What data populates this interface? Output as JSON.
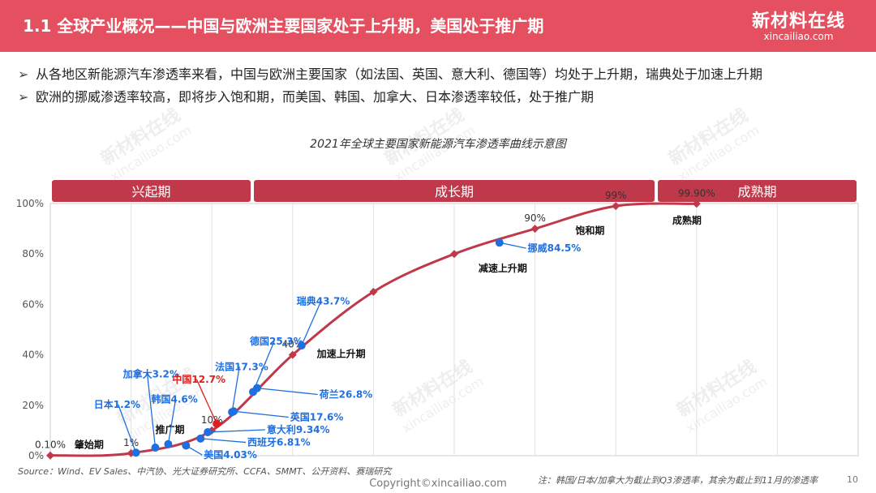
{
  "header": {
    "title": "1.1 全球产业概况——中国与欧洲主要国家处于上升期，美国处于推广期",
    "logo_cn": "新材料在线",
    "logo_en": "xincailiao.com"
  },
  "bullets": [
    {
      "mark": "➢",
      "text": "从各地区新能源汽车渗透率来看，中国与欧洲主要国家（如法国、英国、意大利、德国等）均处于上升期，瑞典处于加速上升期"
    },
    {
      "mark": "➢",
      "text": "欧洲的挪威渗透率较高，即将步入饱和期，而美国、韩国、加拿大、日本渗透率较低，处于推广期"
    }
  ],
  "watermark": {
    "cn": "新材料在线",
    "en": "xincailiao.com"
  },
  "chart_data": {
    "type": "line",
    "title": "2021年全球主要国家新能源汽车渗透率曲线示意图",
    "y_ticks": [
      "0%",
      "20%",
      "40%",
      "60%",
      "80%",
      "100%"
    ],
    "ylim": [
      0,
      100
    ],
    "xlim": [
      0,
      100
    ],
    "phases": [
      {
        "label": "兴起期",
        "start": 0,
        "end": 25
      },
      {
        "label": "成长期",
        "start": 25,
        "end": 75
      },
      {
        "label": "成熟期",
        "start": 75,
        "end": 100
      }
    ],
    "curve": [
      {
        "x": 0,
        "y": 0.1,
        "label": "0.10%"
      },
      {
        "x": 10,
        "y": 1,
        "label": "1%"
      },
      {
        "x": 20,
        "y": 10,
        "label": "10%"
      },
      {
        "x": 30,
        "y": 40,
        "label": "40%"
      },
      {
        "x": 40,
        "y": 65,
        "label": ""
      },
      {
        "x": 50,
        "y": 80,
        "label": ""
      },
      {
        "x": 60,
        "y": 90,
        "label": "90%"
      },
      {
        "x": 70,
        "y": 99,
        "label": "99%"
      },
      {
        "x": 80,
        "y": 99.9,
        "label": "99.90%"
      }
    ],
    "stages": [
      {
        "label": "肇始期",
        "x": 3,
        "y": 3
      },
      {
        "label": "推广期",
        "x": 13,
        "y": 9
      },
      {
        "label": "加速上升期",
        "x": 33,
        "y": 39
      },
      {
        "label": "减速上升期",
        "x": 53,
        "y": 73
      },
      {
        "label": "饱和期",
        "x": 65,
        "y": 88
      },
      {
        "label": "成熟期",
        "x": 77,
        "y": 92
      }
    ],
    "countries": [
      {
        "name": "日本1.2%",
        "value": 1.2,
        "x": 10.6,
        "color": "blue",
        "label_x": 5.4,
        "label_y": 19
      },
      {
        "name": "加拿大3.2%",
        "value": 3.2,
        "x": 13,
        "color": "blue",
        "label_x": 9,
        "label_y": 31
      },
      {
        "name": "韩国4.6%",
        "value": 4.6,
        "x": 14.6,
        "color": "blue",
        "label_x": 12.5,
        "label_y": 21
      },
      {
        "name": "美国4.03%",
        "value": 4.03,
        "x": 16.8,
        "color": "blue",
        "label_x": 19,
        "label_y": -1
      },
      {
        "name": "西班牙6.81%",
        "value": 6.81,
        "x": 18.6,
        "color": "blue",
        "label_x": 24.4,
        "label_y": 4
      },
      {
        "name": "意大利9.34%",
        "value": 9.34,
        "x": 19.5,
        "color": "blue",
        "label_x": 26.8,
        "label_y": 9
      },
      {
        "name": "中国12.7%",
        "value": 12.7,
        "x": 20.6,
        "color": "red",
        "label_x": 15.1,
        "label_y": 29
      },
      {
        "name": "法国17.3%",
        "value": 17.3,
        "x": 22.5,
        "color": "blue",
        "label_x": 20.4,
        "label_y": 34
      },
      {
        "name": "英国17.6%",
        "value": 17.6,
        "x": 22.7,
        "color": "blue",
        "label_x": 29.7,
        "label_y": 14
      },
      {
        "name": "德国25.3%",
        "value": 25.3,
        "x": 25.1,
        "color": "blue",
        "label_x": 24.7,
        "label_y": 44
      },
      {
        "name": "荷兰26.8%",
        "value": 26.8,
        "x": 25.6,
        "color": "blue",
        "label_x": 33.3,
        "label_y": 23
      },
      {
        "name": "瑞典43.7%",
        "value": 43.7,
        "x": 31.1,
        "color": "blue",
        "label_x": 30.5,
        "label_y": 60
      },
      {
        "name": "挪威84.5%",
        "value": 84.5,
        "x": 55.6,
        "color": "blue",
        "label_x": 59.1,
        "label_y": 81
      }
    ]
  },
  "footer": {
    "source": "Source：Wind、EV Sales、中汽协、光大证券研究所、CCFA、SMMT、公开资料、赛瑞研究",
    "note": "注：韩国/日本/加拿大为截止到Q3渗透率，其余为截止到11月的渗透率",
    "copyright": "Copyright©xincailiao.com",
    "page": "10"
  }
}
